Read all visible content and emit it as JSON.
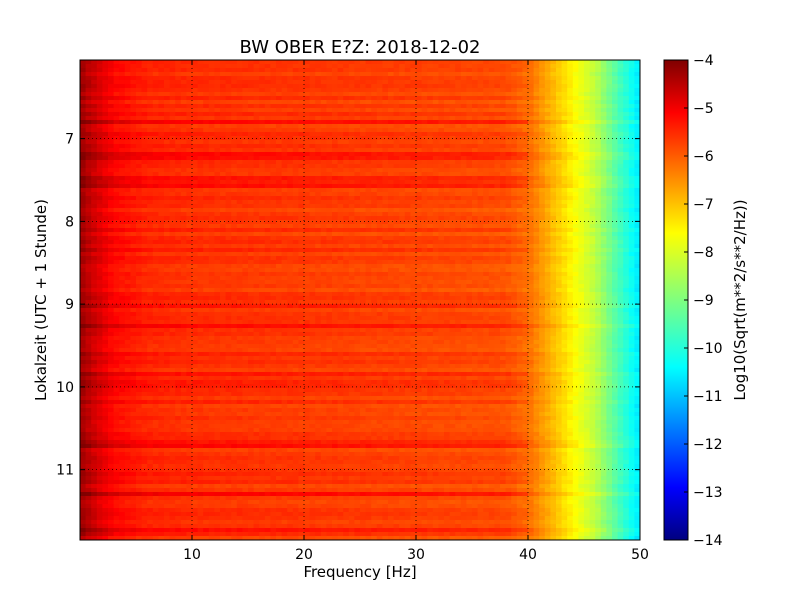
{
  "chart_data": {
    "type": "heatmap",
    "title": "BW OBER E?Z: 2018-12-02",
    "xlabel": "Frequency [Hz]",
    "ylabel": "Lokalzeit (UTC + 1 Stunde)",
    "xlim": [
      0,
      50
    ],
    "ylim": [
      11.85,
      6.05
    ],
    "x_ticks": [
      10,
      20,
      30,
      40,
      50
    ],
    "y_ticks": [
      7,
      8,
      9,
      10,
      11
    ],
    "grid": true,
    "colorscale": "jet",
    "colorbar": {
      "label": "Log10(Sqrt(m**2/s**2/Hz))",
      "range": [
        -14,
        -4
      ],
      "ticks": [
        -4,
        -5,
        -6,
        -7,
        -8,
        -9,
        -10,
        -11,
        -12,
        -13,
        -14
      ]
    },
    "spectrum_profile": {
      "frequency_hz": [
        0,
        1,
        3,
        6,
        10,
        20,
        30,
        38,
        40,
        42,
        44,
        46,
        48,
        50
      ],
      "log10_amplitude": [
        -4.3,
        -4.7,
        -5.3,
        -5.6,
        -5.7,
        -5.8,
        -5.9,
        -6.0,
        -6.3,
        -7.0,
        -7.7,
        -8.4,
        -9.5,
        -10.5
      ]
    },
    "time_banding": "horizontal bands of darker red (higher amplitude) across the time range"
  }
}
